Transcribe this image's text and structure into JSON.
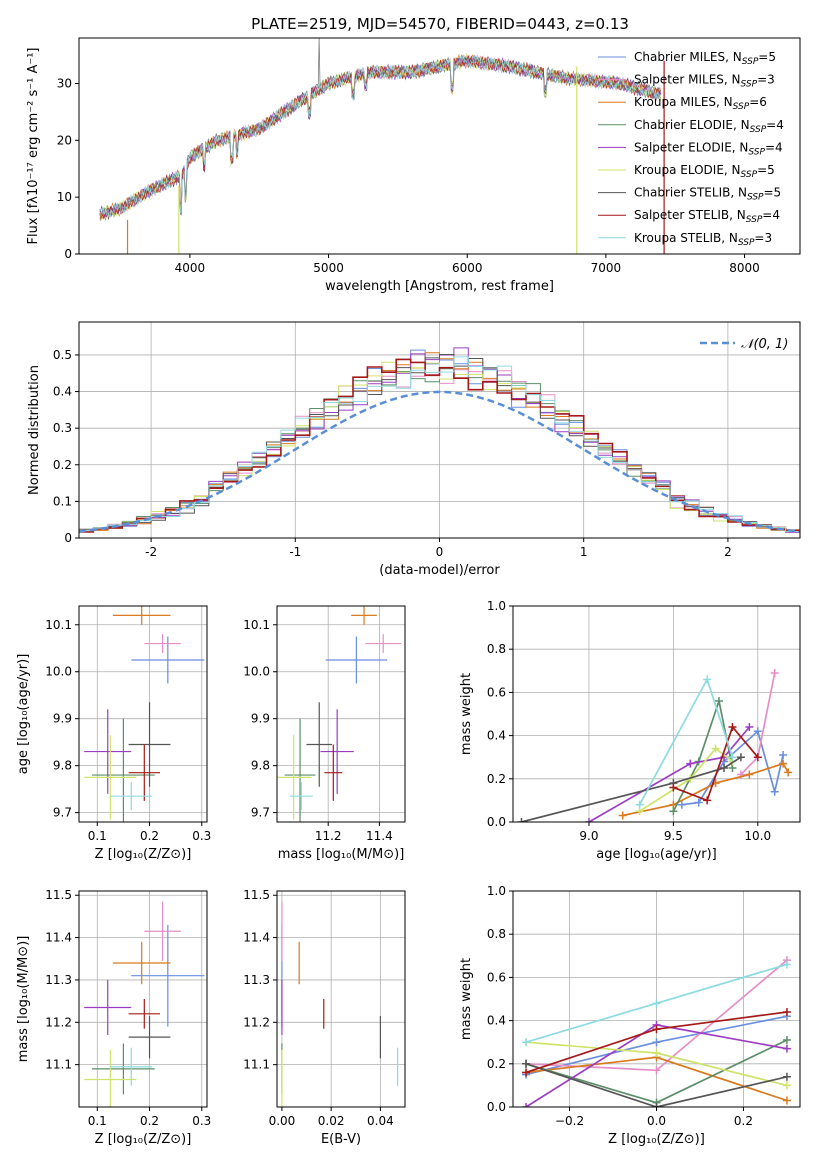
{
  "figure_title": "PLATE=2519, MJD=54570, FIBERID=0443, z=0.13",
  "colors": {
    "CM": "#6a8ee0",
    "SM": "#e68ec7",
    "KM": "#d97a1e",
    "CE": "#5c8f67",
    "SE": "#9b3dc4",
    "KE": "#cfe36a",
    "CS": "#555555",
    "SS": "#a51919",
    "KS": "#8ddbe0",
    "gauss": "#5a8fd6"
  },
  "chart_data": [
    {
      "id": "spectrum",
      "type": "line",
      "xlabel": "wavelength [Angstrom, rest frame]",
      "ylabel": "Flux [fλ10⁻¹⁷ erg cm⁻² s⁻¹ A⁻¹]",
      "xlim": [
        3200,
        8400
      ],
      "ylim": [
        0,
        38
      ],
      "xticks": [
        4000,
        5000,
        6000,
        7000,
        8000
      ],
      "yticks": [
        0,
        10,
        20,
        30
      ],
      "grid": false,
      "legend_position": "right",
      "continuum_x": [
        3350,
        3500,
        3700,
        3950,
        4000,
        4200,
        4500,
        4800,
        5000,
        5300,
        5600,
        6000,
        6300,
        6700,
        7100,
        7400
      ],
      "continuum_y": [
        7,
        8,
        11,
        14,
        17,
        20,
        22,
        27,
        30,
        32,
        32,
        34,
        33,
        31,
        30,
        28
      ],
      "series": [
        {
          "key": "CM",
          "name": "Chabrier MILES, N<sub>SSP</sub>=5"
        },
        {
          "key": "SM",
          "name": "Salpeter MILES, N<sub>SSP</sub>=3"
        },
        {
          "key": "KM",
          "name": "Kroupa MILES, N<sub>SSP</sub>=6"
        },
        {
          "key": "CE",
          "name": "Chabrier ELODIE, N<sub>SSP</sub>=4"
        },
        {
          "key": "SE",
          "name": "Salpeter ELODIE, N<sub>SSP</sub>=4"
        },
        {
          "key": "KE",
          "name": "Kroupa ELODIE, N<sub>SSP</sub>=5"
        },
        {
          "key": "CS",
          "name": "Chabrier STELIB, N<sub>SSP</sub>=5"
        },
        {
          "key": "SS",
          "name": "Salpeter STELIB, N<sub>SSP</sub>=4"
        },
        {
          "key": "KS",
          "name": "Kroupa STELIB, N<sub>SSP</sub>=3"
        }
      ],
      "dropouts": [
        {
          "key": "KM",
          "x": 3550,
          "y0": 0,
          "y1": 6
        },
        {
          "key": "KE",
          "x": 3920,
          "y0": 0,
          "y1": 12
        },
        {
          "key": "KE",
          "x": 6790,
          "y0": 0,
          "y1": 33
        },
        {
          "key": "SS",
          "x": 7420,
          "y0": 0,
          "y1": 34
        }
      ]
    },
    {
      "id": "residuals",
      "type": "bar",
      "xlabel": "(data-model)/error",
      "ylabel": "Normed distribution",
      "xlim": [
        -2.5,
        2.5
      ],
      "ylim": [
        0,
        0.59
      ],
      "xticks": [
        -2,
        -1,
        0,
        1,
        2
      ],
      "yticks": [
        0.0,
        0.1,
        0.2,
        0.3,
        0.4,
        0.5
      ],
      "grid": true,
      "legend_position": "top-right",
      "legend_label": "𝒩(0, 1)",
      "bin_width": 0.1
    },
    {
      "id": "age-vs-Z",
      "type": "scatter",
      "xlabel": "Z [log₁₀(Z/Z⊙)]",
      "ylabel": "age  [log₁₀(age/yr)]",
      "xlim": [
        0.065,
        0.31
      ],
      "ylim": [
        9.68,
        10.14
      ],
      "xticks": [
        0.1,
        0.2,
        0.3
      ],
      "xticklabels": [
        "0.1",
        "0.2",
        "0.3"
      ],
      "yticks": [
        9.7,
        9.8,
        9.9,
        10.0,
        10.1
      ],
      "yticklabels": [
        "9.7",
        "9.8",
        "9.9",
        "10.0",
        "10.1"
      ],
      "grid": true
    },
    {
      "id": "age-vs-mass",
      "type": "scatter",
      "xlabel": "mass [log₁₀(M/M⊙)]",
      "xlim": [
        11.0,
        11.5
      ],
      "ylim": [
        9.68,
        10.14
      ],
      "xticks": [
        11.2,
        11.4
      ],
      "xticklabels": [
        "11.2",
        "11.4"
      ],
      "yticks": [
        9.7,
        9.8,
        9.9,
        10.0,
        10.1
      ],
      "yticklabels": [
        "9.7",
        "9.8",
        "9.9",
        "10.0",
        "10.1"
      ],
      "grid": true
    },
    {
      "id": "weight-vs-age",
      "type": "line",
      "xlabel": "age  [log₁₀(age/yr)]",
      "ylabel": "mass weight",
      "xlim": [
        8.55,
        10.25
      ],
      "ylim": [
        0,
        1.0
      ],
      "xticks": [
        9.0,
        9.5,
        10.0
      ],
      "xticklabels": [
        "9.0",
        "9.5",
        "10.0"
      ],
      "yticks": [
        0,
        0.2,
        0.4,
        0.6,
        0.8,
        1.0
      ],
      "yticklabels": [
        "0.0",
        "0.2",
        "0.4",
        "0.6",
        "0.8",
        "1.0"
      ],
      "grid": true
    },
    {
      "id": "mass-vs-Z",
      "type": "scatter",
      "xlabel": "Z [log₁₀(Z/Z⊙)]",
      "ylabel": "mass [log₁₀(M/M⊙)]",
      "xlim": [
        0.065,
        0.31
      ],
      "ylim": [
        11.0,
        11.51
      ],
      "xticks": [
        0.1,
        0.2,
        0.3
      ],
      "xticklabels": [
        "0.1",
        "0.2",
        "0.3"
      ],
      "yticks": [
        11.1,
        11.2,
        11.3,
        11.4,
        11.5
      ],
      "yticklabels": [
        "11.1",
        "11.2",
        "11.3",
        "11.4",
        "11.5"
      ],
      "grid": true
    },
    {
      "id": "mass-vs-EBV",
      "type": "scatter",
      "xlabel": "E(B-V)",
      "xlim": [
        -0.002,
        0.05
      ],
      "ylim": [
        11.0,
        11.51
      ],
      "xticks": [
        0.0,
        0.02,
        0.04
      ],
      "xticklabels": [
        "0.00",
        "0.02",
        "0.04"
      ],
      "yticks": [
        11.1,
        11.2,
        11.3,
        11.4,
        11.5
      ],
      "yticklabels": [
        "11.1",
        "11.2",
        "11.3",
        "11.4",
        "11.5"
      ],
      "grid": true
    },
    {
      "id": "weight-vs-Z",
      "type": "line",
      "xlabel": "Z [log₁₀(Z/Z⊙)]",
      "ylabel": "mass weight",
      "xlim": [
        -0.33,
        0.33
      ],
      "ylim": [
        0,
        1.0
      ],
      "xticks": [
        -0.2,
        0.0,
        0.2
      ],
      "xticklabels": [
        "−0.2",
        "0.0",
        "0.2"
      ],
      "yticks": [
        0,
        0.2,
        0.4,
        0.6,
        0.8,
        1.0
      ],
      "yticklabels": [
        "0.0",
        "0.2",
        "0.4",
        "0.6",
        "0.8",
        "1.0"
      ],
      "grid": true
    }
  ],
  "fits": [
    {
      "key": "CM",
      "Z": 0.235,
      "Zerr": 0.07,
      "age": 10.025,
      "ageerr": 0.05,
      "mass": 11.31,
      "masserr": 0.12,
      "ebv": 0.0,
      "ages": [
        9.55,
        9.65,
        9.8,
        10.0,
        10.1,
        10.15
      ],
      "aweights": [
        0.08,
        0.09,
        0.28,
        0.42,
        0.14,
        0.31
      ],
      "zs": [
        -0.3,
        0.0,
        0.3
      ],
      "zweights": [
        0.15,
        0.3,
        0.42
      ]
    },
    {
      "key": "SM",
      "Z": 0.225,
      "Zerr": 0.035,
      "age": 10.06,
      "ageerr": 0.02,
      "mass": 11.415,
      "masserr": 0.07,
      "ebv": 0.0,
      "ages": [
        9.9,
        10.0,
        10.1
      ],
      "aweights": [
        0.22,
        0.3,
        0.69
      ],
      "zs": [
        -0.3,
        0.0,
        0.3
      ],
      "zweights": [
        0.2,
        0.17,
        0.68
      ]
    },
    {
      "key": "KM",
      "Z": 0.185,
      "Zerr": 0.055,
      "age": 10.12,
      "ageerr": 0.02,
      "mass": 11.34,
      "masserr": 0.05,
      "ebv": 0.007,
      "ages": [
        9.2,
        9.5,
        9.75,
        9.95,
        10.15,
        10.18
      ],
      "aweights": [
        0.03,
        0.08,
        0.18,
        0.22,
        0.27,
        0.23
      ],
      "zs": [
        -0.3,
        0.0,
        0.3
      ],
      "zweights": [
        0.16,
        0.23,
        0.03
      ]
    },
    {
      "key": "CE",
      "Z": 0.15,
      "Zerr": 0.06,
      "age": 9.78,
      "ageerr": 0.12,
      "mass": 11.09,
      "masserr": 0.06,
      "ebv": 0.0,
      "ages": [
        9.5,
        9.65,
        9.77,
        9.85
      ],
      "aweights": [
        0.05,
        0.28,
        0.56,
        0.25
      ],
      "zs": [
        -0.3,
        0.0,
        0.3
      ],
      "zweights": [
        0.2,
        0.02,
        0.31
      ]
    },
    {
      "key": "SE",
      "Z": 0.12,
      "Zerr": 0.045,
      "age": 9.83,
      "ageerr": 0.09,
      "mass": 11.235,
      "masserr": 0.065,
      "ebv": 0.0,
      "ages": [
        9.0,
        9.6,
        9.8,
        9.95
      ],
      "aweights": [
        0.0,
        0.27,
        0.3,
        0.44
      ],
      "zs": [
        -0.3,
        0.0,
        0.3
      ],
      "zweights": [
        0.0,
        0.38,
        0.27
      ]
    },
    {
      "key": "KE",
      "Z": 0.125,
      "Zerr": 0.05,
      "age": 9.775,
      "ageerr": 0.09,
      "mass": 11.065,
      "masserr": 0.07,
      "ebv": 0.0,
      "ages": [
        9.3,
        9.6,
        9.75,
        9.85
      ],
      "aweights": [
        0.05,
        0.2,
        0.34,
        0.28
      ],
      "zs": [
        -0.3,
        0.0,
        0.3
      ],
      "zweights": [
        0.3,
        0.25,
        0.1
      ]
    },
    {
      "key": "CS",
      "Z": 0.2,
      "Zerr": 0.04,
      "age": 9.845,
      "ageerr": 0.09,
      "mass": 11.165,
      "masserr": 0.05,
      "ebv": 0.04,
      "ages": [
        8.6,
        9.5,
        9.8,
        9.9
      ],
      "aweights": [
        0.0,
        0.18,
        0.25,
        0.3
      ],
      "zs": [
        -0.3,
        0.0,
        0.3
      ],
      "zweights": [
        0.2,
        0.0,
        0.14
      ]
    },
    {
      "key": "SS",
      "Z": 0.19,
      "Zerr": 0.03,
      "age": 9.785,
      "ageerr": 0.06,
      "mass": 11.22,
      "masserr": 0.035,
      "ebv": 0.017,
      "ages": [
        9.5,
        9.7,
        9.85,
        10.0
      ],
      "aweights": [
        0.16,
        0.1,
        0.44,
        0.3
      ],
      "zs": [
        -0.3,
        0.0,
        0.3
      ],
      "zweights": [
        0.16,
        0.36,
        0.44
      ]
    },
    {
      "key": "KS",
      "Z": 0.165,
      "Zerr": 0.04,
      "age": 9.735,
      "ageerr": 0.03,
      "mass": 11.095,
      "masserr": 0.045,
      "ebv": 0.047,
      "ages": [
        9.3,
        9.7,
        9.85
      ],
      "aweights": [
        0.08,
        0.66,
        0.3
      ],
      "zs": [
        -0.3,
        0.0,
        0.3
      ],
      "zweights": [
        0.3,
        0.48,
        0.66
      ]
    }
  ]
}
